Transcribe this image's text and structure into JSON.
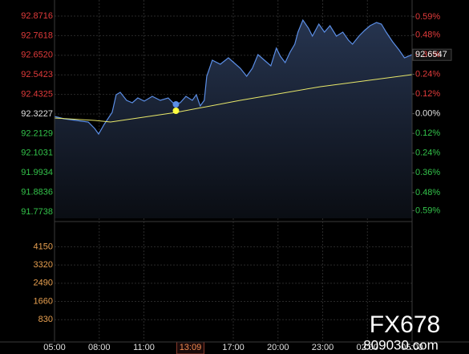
{
  "chart_data": {
    "type": "line",
    "xlim": [
      0,
      24
    ],
    "xticks": [
      {
        "value": 0,
        "label": "05:00"
      },
      {
        "value": 3,
        "label": "08:00"
      },
      {
        "value": 6,
        "label": "11:00"
      },
      {
        "value": 12,
        "label": "17:00"
      },
      {
        "value": 15,
        "label": "20:00"
      },
      {
        "value": 18,
        "label": "23:00"
      },
      {
        "value": 21,
        "label": "02:00"
      },
      {
        "value": 24,
        "label": "05:00"
      }
    ],
    "ylim": [
      91.7377,
      92.9257
    ],
    "yticks": [
      92.8716,
      92.7618,
      {
        "value": 92.652,
        "label": "92.6520"
      },
      92.5423,
      92.4325,
      92.3227,
      92.2129,
      92.1031,
      91.9934,
      91.8836,
      91.7738
    ],
    "y2lim": [
      -0.637,
      0.653
    ],
    "y2ticks": [
      {
        "value": 0.59,
        "label": "0.59%"
      },
      {
        "value": 0.48,
        "label": "0.48%"
      },
      {
        "value": 0.36,
        "label": "0.36%"
      },
      {
        "value": 0.24,
        "label": "0.24%"
      },
      {
        "value": 0.12,
        "label": "0.12%"
      },
      {
        "value": 0,
        "label": "0.00%"
      },
      {
        "value": -0.12,
        "label": "0.12%"
      },
      {
        "value": -0.24,
        "label": "0.24%"
      },
      {
        "value": -0.36,
        "label": "0.36%"
      },
      {
        "value": -0.48,
        "label": "0.48%"
      },
      {
        "value": -0.59,
        "label": "0.59%"
      }
    ],
    "up_color": "#e23b3b",
    "down_color": "#33c24a",
    "flat_color": "#e0e0e0",
    "volume_lim": [
      0,
      5150
    ],
    "volume_ticks": [
      4150,
      3320,
      2490,
      1660,
      830
    ],
    "grid": true,
    "series": [
      {
        "color": "#5b8ee6",
        "x": [
          0,
          0.65,
          1.45,
          2.26,
          2.69,
          2.96,
          3.33,
          3.87,
          4.14,
          4.41,
          4.84,
          5.22,
          5.59,
          6.02,
          6.56,
          7.1,
          7.63,
          8.06,
          8.44,
          8.82,
          9.25,
          9.52,
          9.78,
          10.05,
          10.22,
          10.59,
          11.13,
          11.67,
          12.04,
          12.47,
          12.9,
          13.28,
          13.66,
          14.09,
          14.52,
          14.89,
          15.16,
          15.48,
          15.81,
          16.13,
          16.34,
          16.67,
          17.04,
          17.31,
          17.74,
          18.12,
          18.49,
          18.92,
          19.35,
          19.73,
          20,
          20.43,
          20.81,
          21.18,
          21.61,
          21.94,
          22.26,
          22.69,
          23.12,
          23.49,
          23.76,
          23.98
        ],
        "values": [
          92.3092,
          92.2957,
          92.2867,
          92.2777,
          92.2417,
          92.2102,
          92.2642,
          92.3317,
          92.4307,
          92.4442,
          92.3992,
          92.3857,
          92.4127,
          92.3947,
          92.4217,
          92.3992,
          92.4127,
          92.3767,
          92.3857,
          92.4217,
          92.3992,
          92.4307,
          92.3677,
          92.3992,
          92.5342,
          92.6242,
          92.6017,
          92.6377,
          92.6107,
          92.5792,
          92.5342,
          92.5792,
          92.6557,
          92.6242,
          92.5927,
          92.6917,
          92.6467,
          92.6107,
          92.6692,
          92.7142,
          92.7817,
          92.8492,
          92.8042,
          92.7592,
          92.8267,
          92.7817,
          92.8177,
          92.7592,
          92.7817,
          92.7367,
          92.7142,
          92.7592,
          92.7907,
          92.8177,
          92.8357,
          92.8267,
          92.7817,
          92.7277,
          92.6827,
          92.6377,
          92.6467,
          92.6547
        ]
      },
      {
        "color": "#e8e86a",
        "x": [
          0,
          2.69,
          3.76,
          8.17,
          12.47,
          17.85,
          23.98
        ],
        "values": [
          92.3002,
          92.2867,
          92.2777,
          92.3317,
          92.3992,
          92.4757,
          92.5432
        ]
      }
    ],
    "cursor": {
      "x": 8.15,
      "label": "13:09",
      "price": 92.3767,
      "average": 92.3407
    }
  },
  "watermark": {
    "brand": "FX678",
    "site": "809030.com"
  }
}
